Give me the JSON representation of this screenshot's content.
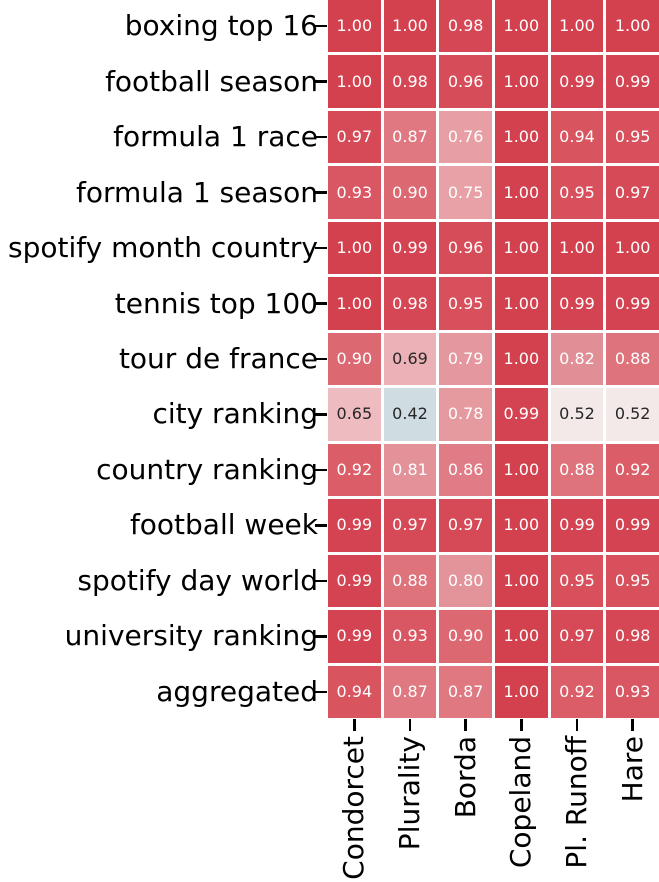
{
  "chart_data": {
    "type": "heatmap",
    "title": "",
    "xlabel": "",
    "ylabel": "",
    "rows": [
      "boxing top 16",
      "football season",
      "formula 1 race",
      "formula 1 season",
      "spotify month country",
      "tennis top 100",
      "tour de france",
      "city ranking",
      "country ranking",
      "football week",
      "spotify day world",
      "university ranking",
      "aggregated"
    ],
    "columns": [
      "Condorcet",
      "Plurality",
      "Borda",
      "Copeland",
      "Pl. Runoff",
      "Hare"
    ],
    "values": [
      [
        1.0,
        1.0,
        0.98,
        1.0,
        1.0,
        1.0
      ],
      [
        1.0,
        0.98,
        0.96,
        1.0,
        0.99,
        0.99
      ],
      [
        0.97,
        0.87,
        0.76,
        1.0,
        0.94,
        0.95
      ],
      [
        0.93,
        0.9,
        0.75,
        1.0,
        0.95,
        0.97
      ],
      [
        1.0,
        0.99,
        0.96,
        1.0,
        1.0,
        1.0
      ],
      [
        1.0,
        0.98,
        0.95,
        1.0,
        0.99,
        0.99
      ],
      [
        0.9,
        0.69,
        0.79,
        1.0,
        0.82,
        0.88
      ],
      [
        0.65,
        0.42,
        0.78,
        0.99,
        0.52,
        0.52
      ],
      [
        0.92,
        0.81,
        0.86,
        1.0,
        0.88,
        0.92
      ],
      [
        0.99,
        0.97,
        0.97,
        1.0,
        0.99,
        0.99
      ],
      [
        0.99,
        0.88,
        0.8,
        1.0,
        0.95,
        0.95
      ],
      [
        0.99,
        0.93,
        0.9,
        1.0,
        0.97,
        0.98
      ],
      [
        0.94,
        0.87,
        0.87,
        1.0,
        0.92,
        0.93
      ]
    ],
    "value_decimals": 2,
    "annotations_on": true,
    "x_tick_label_rotation_deg": 90,
    "legend_position": "none",
    "grid": "white cell separators",
    "colors": {
      "figure_background": "#ffffff",
      "annotation_text_light": "#ffffff",
      "annotation_text_dark": "#262626",
      "axis_label_text": "#000000",
      "tick_mark": "#000000",
      "max_red": "#d3404e",
      "low_blue": "#cfdde3"
    },
    "colormap_stops": [
      {
        "value": 0.42,
        "color": "#cfdde3"
      },
      {
        "value": 0.5,
        "color": "#f2eeec"
      },
      {
        "value": 0.52,
        "color": "#f2e9e8"
      },
      {
        "value": 0.65,
        "color": "#eebcc0"
      },
      {
        "value": 0.69,
        "color": "#ecb1b6"
      },
      {
        "value": 0.76,
        "color": "#e79fa5"
      },
      {
        "value": 0.82,
        "color": "#e18f96"
      },
      {
        "value": 0.88,
        "color": "#de737c"
      },
      {
        "value": 0.93,
        "color": "#d95762"
      },
      {
        "value": 1.0,
        "color": "#d3404e"
      }
    ]
  }
}
